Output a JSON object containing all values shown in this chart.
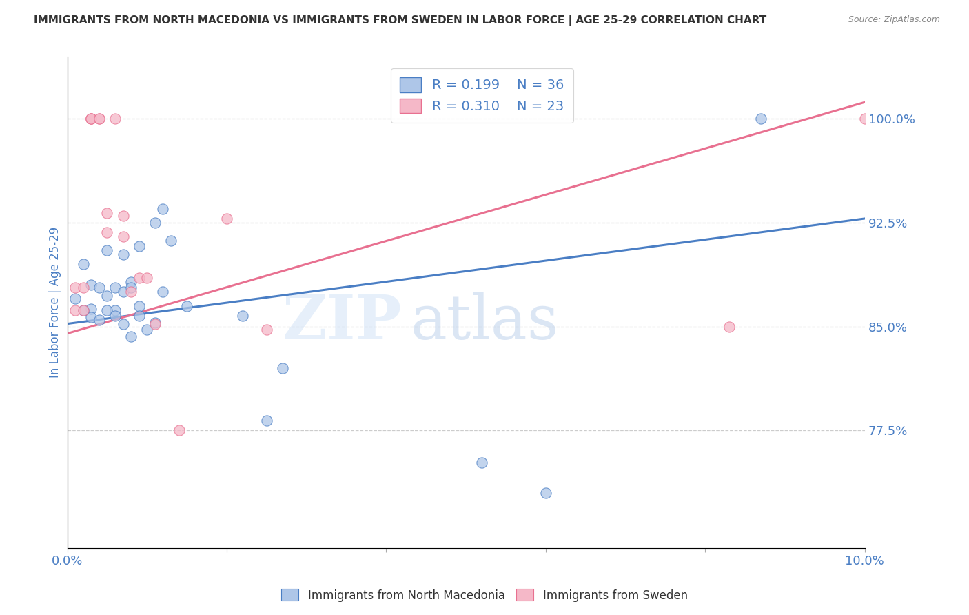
{
  "title": "IMMIGRANTS FROM NORTH MACEDONIA VS IMMIGRANTS FROM SWEDEN IN LABOR FORCE | AGE 25-29 CORRELATION CHART",
  "source": "Source: ZipAtlas.com",
  "ylabel": "In Labor Force | Age 25-29",
  "xlim": [
    0.0,
    0.1
  ],
  "ylim": [
    0.69,
    1.045
  ],
  "xticks": [
    0.0,
    0.02,
    0.04,
    0.06,
    0.08,
    0.1
  ],
  "xticklabels": [
    "0.0%",
    "",
    "",
    "",
    "",
    "10.0%"
  ],
  "yticks_right": [
    1.0,
    0.925,
    0.85,
    0.775
  ],
  "ytick_right_labels": [
    "100.0%",
    "92.5%",
    "85.0%",
    "77.5%"
  ],
  "blue_color": "#aec6e8",
  "pink_color": "#f5b8c8",
  "blue_line_color": "#4a7ec4",
  "pink_line_color": "#e87090",
  "r_blue": 0.199,
  "n_blue": 36,
  "r_pink": 0.31,
  "n_pink": 23,
  "series1_label": "Immigrants from North Macedonia",
  "series2_label": "Immigrants from Sweden",
  "watermark_zip": "ZIP",
  "watermark_atlas": "atlas",
  "blue_scatter_x": [
    0.001,
    0.002,
    0.003,
    0.003,
    0.004,
    0.005,
    0.005,
    0.006,
    0.006,
    0.007,
    0.007,
    0.008,
    0.008,
    0.009,
    0.009,
    0.01,
    0.011,
    0.012,
    0.012,
    0.013,
    0.002,
    0.003,
    0.004,
    0.005,
    0.006,
    0.007,
    0.008,
    0.009,
    0.011,
    0.015,
    0.022,
    0.027,
    0.025,
    0.052,
    0.06,
    0.087
  ],
  "blue_scatter_y": [
    0.87,
    0.895,
    0.88,
    0.863,
    0.878,
    0.905,
    0.872,
    0.878,
    0.862,
    0.902,
    0.875,
    0.882,
    0.843,
    0.908,
    0.865,
    0.848,
    0.925,
    0.935,
    0.875,
    0.912,
    0.862,
    0.857,
    0.855,
    0.862,
    0.858,
    0.852,
    0.878,
    0.858,
    0.853,
    0.865,
    0.858,
    0.82,
    0.782,
    0.752,
    0.73,
    1.0
  ],
  "pink_scatter_x": [
    0.001,
    0.001,
    0.002,
    0.002,
    0.003,
    0.003,
    0.003,
    0.004,
    0.004,
    0.005,
    0.005,
    0.006,
    0.007,
    0.007,
    0.008,
    0.009,
    0.01,
    0.011,
    0.014,
    0.02,
    0.025,
    0.083,
    0.1
  ],
  "pink_scatter_y": [
    0.878,
    0.862,
    0.878,
    0.862,
    1.0,
    1.0,
    1.0,
    1.0,
    1.0,
    0.932,
    0.918,
    1.0,
    0.93,
    0.915,
    0.875,
    0.885,
    0.885,
    0.852,
    0.775,
    0.928,
    0.848,
    0.85,
    1.0
  ],
  "blue_line_x": [
    0.0,
    0.1
  ],
  "blue_line_y": [
    0.852,
    0.928
  ],
  "pink_line_x": [
    0.0,
    0.1
  ],
  "pink_line_y": [
    0.845,
    1.012
  ],
  "grid_color": "#cccccc",
  "title_color": "#333333",
  "axis_label_color": "#4a7ec4",
  "right_axis_color": "#4a7ec4",
  "text_color": "#333333"
}
